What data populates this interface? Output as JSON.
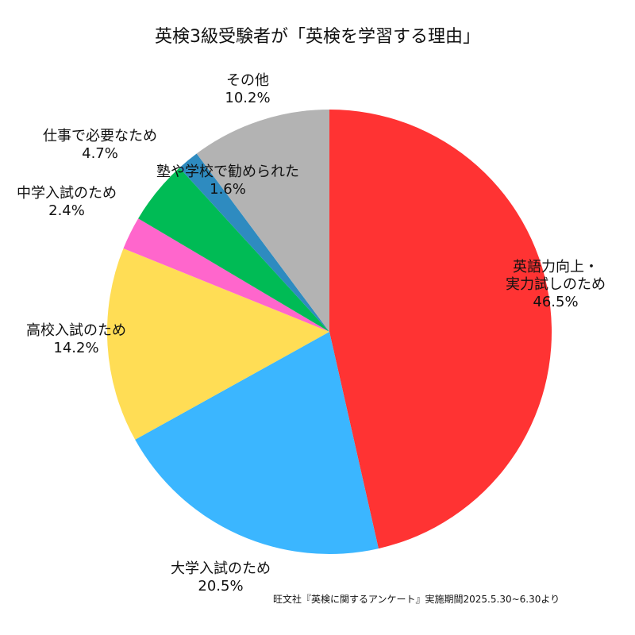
{
  "chart_data": {
    "type": "pie",
    "title": "英検3級受験者が「英検を学習する理由」",
    "start": "top",
    "direction": "clockwise",
    "slices": [
      {
        "lines": [
          "英語力向上・",
          "実力試しのため"
        ],
        "percent_label": "46.5%",
        "value": 46.5,
        "color": "#ff3333"
      },
      {
        "lines": [
          "大学入試のため"
        ],
        "percent_label": "20.5%",
        "value": 20.5,
        "color": "#3bb6ff"
      },
      {
        "lines": [
          "高校入試のため"
        ],
        "percent_label": "14.2%",
        "value": 14.2,
        "color": "#ffdd55"
      },
      {
        "lines": [
          "中学入試のため"
        ],
        "percent_label": "2.4%",
        "value": 2.4,
        "color": "#ff66cc"
      },
      {
        "lines": [
          "仕事で必要なため"
        ],
        "percent_label": "4.7%",
        "value": 4.7,
        "color": "#00bb55"
      },
      {
        "lines": [
          "塾や学校で勧められた"
        ],
        "percent_label": "1.6%",
        "value": 1.6,
        "color": "#2e8bc0"
      },
      {
        "lines": [
          "その他"
        ],
        "percent_label": "10.2%",
        "value": 10.2,
        "color": "#b3b3b3"
      }
    ],
    "source": "旺文社『英検に関するアンケート』実施期間2025.5.30~6.30より"
  }
}
